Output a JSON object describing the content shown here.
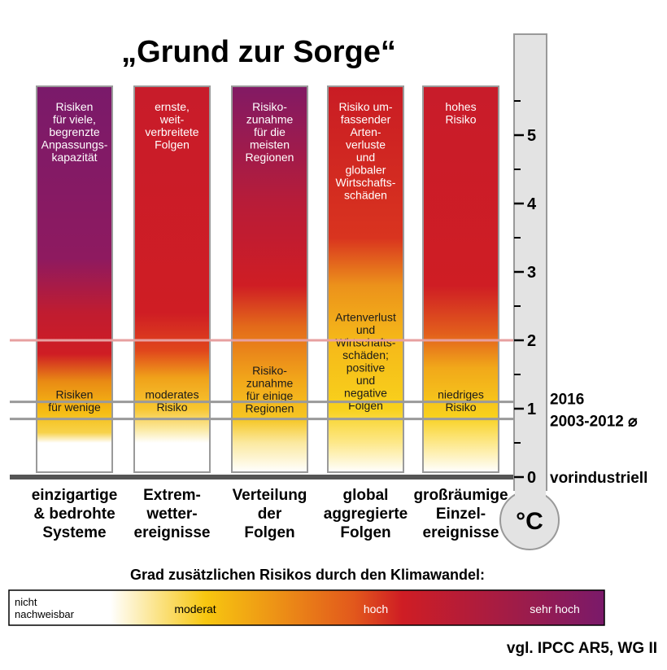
{
  "title": "„Grund zur Sorge“",
  "unit_symbol": "°C",
  "chart_data": {
    "type": "bar",
    "ylim": [
      0,
      6
    ],
    "y_ticks": [
      "0",
      "1",
      "2",
      "3",
      "4",
      "5"
    ],
    "categories": [
      {
        "label": [
          "einzigartige",
          "& bedrohte",
          "Systeme"
        ],
        "gradient": [
          {
            "t": 0.5,
            "color": "#ffffff"
          },
          {
            "t": 0.65,
            "color": "#f7d24a"
          },
          {
            "t": 0.95,
            "color": "#f6bd14"
          },
          {
            "t": 1.4,
            "color": "#e98a14"
          },
          {
            "t": 1.8,
            "color": "#cf1d24"
          },
          {
            "t": 2.4,
            "color": "#c01c30"
          },
          {
            "t": 3.2,
            "color": "#8e1a60"
          },
          {
            "t": 5.7,
            "color": "#7a1a6a"
          }
        ],
        "annotations": [
          {
            "y": 5.36,
            "lines": [
              "Risiken",
              "für viele,",
              "begrenzte",
              "Anpassungs-",
              "kapazität"
            ],
            "dark": false
          },
          {
            "y": 1.15,
            "lines": [
              "Risiken",
              "für wenige"
            ],
            "dark": true
          }
        ]
      },
      {
        "label": [
          "Extrem-",
          "wetter-",
          "ereignisse"
        ],
        "gradient": [
          {
            "t": 0.5,
            "color": "#ffffff"
          },
          {
            "t": 0.7,
            "color": "#fbe9a0"
          },
          {
            "t": 1.0,
            "color": "#f7c630"
          },
          {
            "t": 1.45,
            "color": "#f0a21a"
          },
          {
            "t": 1.85,
            "color": "#e0461c"
          },
          {
            "t": 2.4,
            "color": "#cf1d24"
          },
          {
            "t": 5.7,
            "color": "#c81c2a"
          }
        ],
        "annotations": [
          {
            "y": 5.36,
            "lines": [
              "ernste,",
              "weit-",
              "verbreitete",
              "Folgen"
            ],
            "dark": false
          },
          {
            "y": 1.15,
            "lines": [
              "moderates",
              "Risiko"
            ],
            "dark": true
          }
        ]
      },
      {
        "label": [
          "Verteilung",
          "der",
          "Folgen"
        ],
        "gradient": [
          {
            "t": 0.5,
            "color": "#fbe9a0"
          },
          {
            "t": 0.85,
            "color": "#f6c622"
          },
          {
            "t": 1.4,
            "color": "#f2a81a"
          },
          {
            "t": 2.2,
            "color": "#e36a1a"
          },
          {
            "t": 2.8,
            "color": "#cf1d24"
          },
          {
            "t": 4.0,
            "color": "#b81c38"
          },
          {
            "t": 5.7,
            "color": "#821a64"
          }
        ],
        "annotations": [
          {
            "y": 5.36,
            "lines": [
              "Risiko-",
              "zunahme",
              "für die",
              "meisten",
              "Regionen"
            ],
            "dark": false
          },
          {
            "y": 1.5,
            "lines": [
              "Risiko-",
              "zunahme",
              "für einige",
              "Regionen"
            ],
            "dark": true
          }
        ]
      },
      {
        "label": [
          "global",
          "aggregierte",
          "Folgen"
        ],
        "gradient": [
          {
            "t": 0.5,
            "color": "#fde88a"
          },
          {
            "t": 1.0,
            "color": "#f8d11c"
          },
          {
            "t": 2.0,
            "color": "#f5b819"
          },
          {
            "t": 2.8,
            "color": "#ec921b"
          },
          {
            "t": 3.5,
            "color": "#d9341f"
          },
          {
            "t": 5.7,
            "color": "#c91c24"
          }
        ],
        "annotations": [
          {
            "y": 5.36,
            "lines": [
              "Risiko um-",
              "fassender",
              "Arten-",
              "verluste",
              "und",
              "globaler",
              "Wirtschafts-",
              "schäden"
            ],
            "dark": false
          },
          {
            "y": 2.28,
            "lines": [
              "Artenverlust",
              "und",
              "Wirtschafts-",
              "schäden;",
              "positive",
              "und",
              "negative",
              "Folgen"
            ],
            "dark": true
          }
        ]
      },
      {
        "label": [
          "großräumige",
          "Einzel-",
          "ereignisse"
        ],
        "gradient": [
          {
            "t": 0.5,
            "color": "#fde88a"
          },
          {
            "t": 0.9,
            "color": "#f8d01c"
          },
          {
            "t": 1.6,
            "color": "#f1a81a"
          },
          {
            "t": 2.1,
            "color": "#e25e1c"
          },
          {
            "t": 2.8,
            "color": "#cf1d24"
          },
          {
            "t": 5.7,
            "color": "#c81c2a"
          }
        ],
        "annotations": [
          {
            "y": 5.36,
            "lines": [
              "hohes",
              "Risiko"
            ],
            "dark": false
          },
          {
            "y": 1.15,
            "lines": [
              "niedriges",
              "Risiko"
            ],
            "dark": true
          }
        ]
      }
    ],
    "reference_lines": [
      {
        "value": 2,
        "label": "",
        "color": "#e7a0a0"
      },
      {
        "value": 1.1,
        "label": "2016",
        "color": "#9a9a9a"
      },
      {
        "value": 0.85,
        "label": "2003-2012 ⌀",
        "color": "#9a9a9a"
      },
      {
        "value": 0,
        "label": "vorindustriell",
        "color": "#555555"
      }
    ],
    "legend": {
      "title": "Grad zusätzlichen Risikos durch den Klimawandel:",
      "items": [
        "nicht nachweisbar",
        "moderat",
        "hoch",
        "sehr hoch"
      ],
      "not_detectable": [
        "nicht",
        "nachweisbar"
      ],
      "colors": [
        "#ffffff",
        "#f7c710",
        "#cf1d24",
        "#7a1a6a"
      ]
    }
  },
  "source": "vgl. IPCC AR5, WG II"
}
